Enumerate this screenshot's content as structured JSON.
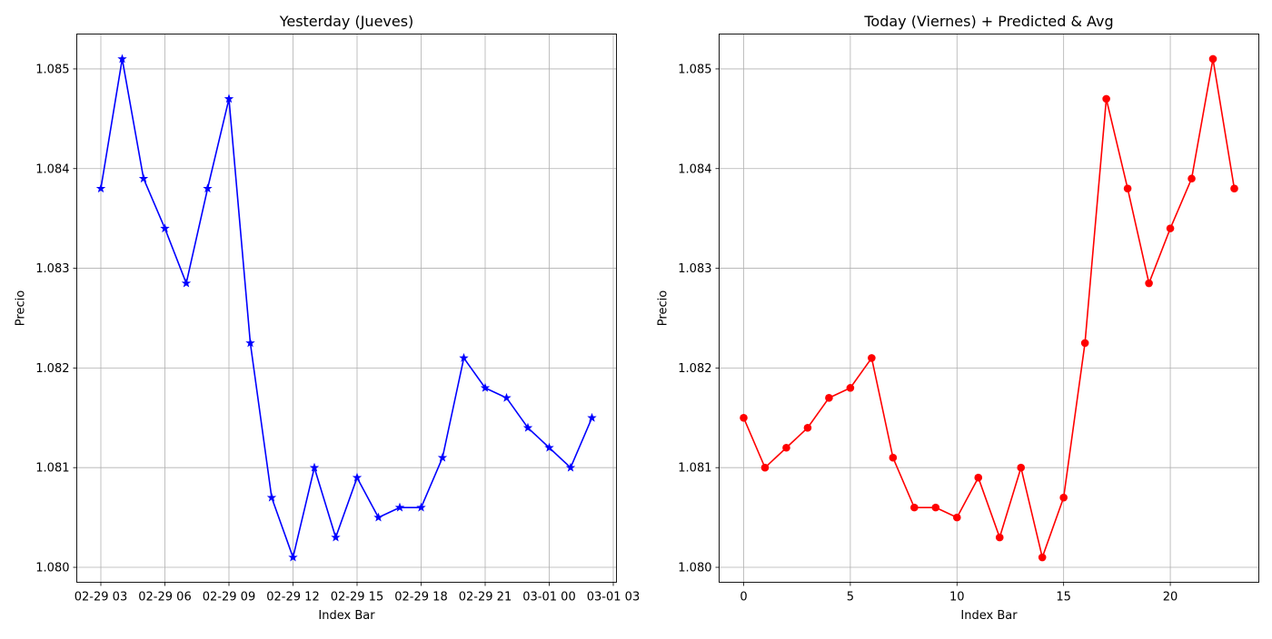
{
  "chart_data": [
    {
      "type": "line",
      "title": "Yesterday (Jueves)",
      "xlabel": "Index Bar",
      "ylabel": "Precio",
      "grid": true,
      "marker": "star",
      "color": "#0000ff",
      "x_tick_labels": [
        "02-29 03",
        "02-29 06",
        "02-29 09",
        "02-29 12",
        "02-29 15",
        "02-29 18",
        "02-29 21",
        "03-01 00",
        "03-01 03"
      ],
      "y_tick_labels": [
        "1.080",
        "1.081",
        "1.082",
        "1.083",
        "1.084",
        "1.085"
      ],
      "ylim": [
        1.07985,
        1.08535
      ],
      "series": [
        {
          "x": [
            "02-29 03:00",
            "02-29 04:00",
            "02-29 05:00",
            "02-29 06:00",
            "02-29 07:00",
            "02-29 08:00",
            "02-29 09:00",
            "02-29 10:00",
            "02-29 11:00",
            "02-29 12:00",
            "02-29 13:00",
            "02-29 14:00",
            "02-29 15:00",
            "02-29 16:00",
            "02-29 17:00",
            "02-29 18:00",
            "02-29 19:00",
            "02-29 20:00",
            "02-29 21:00",
            "02-29 22:00",
            "02-29 23:00",
            "03-01 00:00",
            "03-01 01:00",
            "03-01 02:00"
          ],
          "values": [
            1.0838,
            1.0851,
            1.0839,
            1.0834,
            1.08285,
            1.0838,
            1.0847,
            1.08225,
            1.0807,
            1.0801,
            1.081,
            1.0803,
            1.0809,
            1.0805,
            1.0806,
            1.0806,
            1.0811,
            1.0821,
            1.0818,
            1.0817,
            1.0814,
            1.0812,
            1.081,
            1.0815
          ]
        }
      ]
    },
    {
      "type": "line",
      "title": "Today (Viernes)  + Predicted & Avg",
      "xlabel": "Index Bar",
      "ylabel": "Precio",
      "grid": true,
      "marker": "circle",
      "color": "#ff0000",
      "x_tick_labels": [
        "0",
        "5",
        "10",
        "15",
        "20"
      ],
      "y_tick_labels": [
        "1.080",
        "1.081",
        "1.082",
        "1.083",
        "1.084",
        "1.085"
      ],
      "xlim": [
        -1.15,
        24.15
      ],
      "ylim": [
        1.07985,
        1.08535
      ],
      "series": [
        {
          "x": [
            0,
            1,
            2,
            3,
            4,
            5,
            6,
            7,
            8,
            9,
            10,
            11,
            12,
            13,
            14,
            15,
            16,
            17,
            18,
            19,
            20,
            21,
            22,
            23
          ],
          "values": [
            1.0815,
            1.081,
            1.0812,
            1.0814,
            1.0817,
            1.0818,
            1.0821,
            1.0811,
            1.0806,
            1.0806,
            1.0805,
            1.0809,
            1.0803,
            1.081,
            1.0801,
            1.0807,
            1.08225,
            1.0847,
            1.0838,
            1.08285,
            1.0834,
            1.0839,
            1.0851,
            1.0838
          ]
        }
      ]
    }
  ]
}
